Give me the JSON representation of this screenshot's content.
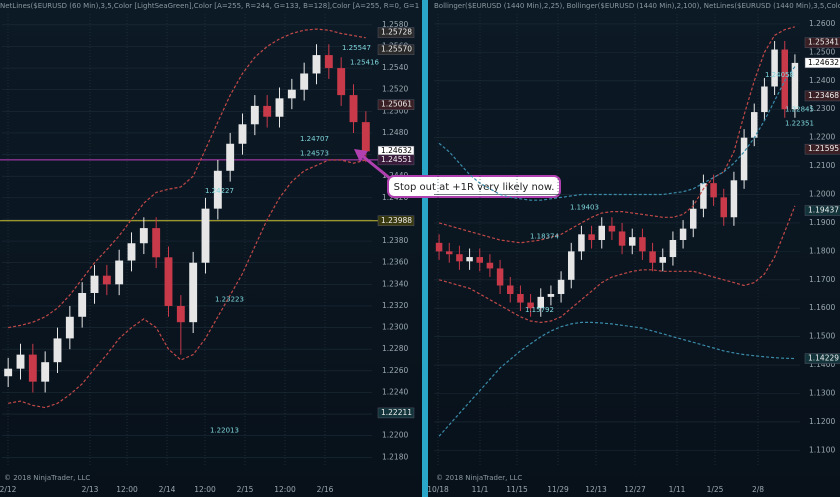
{
  "chart_data": [
    {
      "type": "candlestick",
      "title": "NetLines($EURUSD (60 Min),3,5,Color [LightSeaGreen],Color [A=255, R=244, G=133, B=128],Color [A=255, R=0, G=1",
      "copyright": "© 2018 NinjaTrader, LLC",
      "x_labels": [
        "2/12",
        "2/13",
        "12:00",
        "2/14",
        "12:00",
        "2/15",
        "12:00",
        "2/16"
      ],
      "open": [
        1.2255,
        1.2262,
        1.2275,
        1.225,
        1.2268,
        1.229,
        1.231,
        1.2332,
        1.2348,
        1.234,
        1.2362,
        1.2378,
        1.2392,
        1.2365,
        1.232,
        1.2305,
        1.236,
        1.241,
        1.2445,
        1.247,
        1.2488,
        1.2505,
        1.2495,
        1.2512,
        1.252,
        1.2535,
        1.2552,
        1.254,
        1.2515,
        1.249
      ],
      "high": [
        1.2272,
        1.2285,
        1.2285,
        1.2278,
        1.23,
        1.232,
        1.2342,
        1.2358,
        1.2358,
        1.2372,
        1.2388,
        1.2402,
        1.2402,
        1.2375,
        1.233,
        1.237,
        1.242,
        1.2455,
        1.248,
        1.2498,
        1.2515,
        1.2515,
        1.2522,
        1.253,
        1.2545,
        1.2562,
        1.2562,
        1.255,
        1.2525,
        1.25
      ],
      "low": [
        1.2245,
        1.2252,
        1.224,
        1.224,
        1.2258,
        1.228,
        1.23,
        1.2322,
        1.233,
        1.233,
        1.2352,
        1.2368,
        1.2355,
        1.231,
        1.2275,
        1.2295,
        1.235,
        1.24,
        1.2435,
        1.246,
        1.2478,
        1.2485,
        1.2485,
        1.2502,
        1.251,
        1.2525,
        1.253,
        1.2505,
        1.248,
        1.2453
      ],
      "close": [
        1.2262,
        1.2275,
        1.225,
        1.2268,
        1.229,
        1.231,
        1.2332,
        1.2348,
        1.234,
        1.2362,
        1.2378,
        1.2392,
        1.2365,
        1.232,
        1.2305,
        1.236,
        1.241,
        1.2445,
        1.247,
        1.2488,
        1.2505,
        1.2495,
        1.2512,
        1.252,
        1.2535,
        1.2552,
        1.254,
        1.2515,
        1.249,
        1.2463
      ],
      "up_color": "#e6e6e6",
      "down_color": "#c83a4a",
      "series": [
        {
          "color": "#c04848",
          "values": [
            1.23,
            1.2302,
            1.2305,
            1.231,
            1.2318,
            1.233,
            1.2345,
            1.236,
            1.2372,
            1.2385,
            1.24,
            1.2415,
            1.2425,
            1.2428,
            1.243,
            1.244,
            1.2465,
            1.249,
            1.2515,
            1.2535,
            1.255,
            1.256,
            1.2567,
            1.2572,
            1.2575,
            1.2576,
            1.2575,
            1.2572,
            1.257,
            1.2568
          ]
        },
        {
          "color": "#c04848",
          "values": [
            1.223,
            1.2232,
            1.2228,
            1.2226,
            1.223,
            1.2238,
            1.2248,
            1.2262,
            1.2275,
            1.229,
            1.23,
            1.2308,
            1.23,
            1.228,
            1.227,
            1.2275,
            1.229,
            1.231,
            1.233,
            1.235,
            1.2375,
            1.24,
            1.242,
            1.2435,
            1.2445,
            1.245,
            1.2455,
            1.2455,
            1.2452,
            1.2455
          ]
        }
      ],
      "levels": [
        {
          "value": 1.24551,
          "color": "#c040c0"
        },
        {
          "value": 1.23988,
          "color": "#c8c030"
        }
      ],
      "price_labels": [
        {
          "value": 1.25728,
          "color": "#2a2a2a"
        },
        {
          "value": 1.2557,
          "label": "1.25570",
          "color": "#2a2a2a"
        },
        {
          "value": 1.25061,
          "color": "#3a2024"
        },
        {
          "value": 1.24632,
          "color": "#ffffff"
        },
        {
          "value": 1.24551,
          "color": "#3a1a3a"
        },
        {
          "value": 1.23988,
          "color": "#3a3a10"
        },
        {
          "value": 1.22211,
          "color": "#12343a"
        }
      ],
      "net_labels": [
        1.25547,
        1.25416,
        1.24707,
        1.24573,
        1.24227,
        1.23223,
        1.22013
      ],
      "annotation": "Stop out at +1R very likely now.",
      "ylim": [
        1.2172,
        1.259
      ],
      "yticks": [
        {
          "value": 1.218,
          "label": "1.2180"
        },
        {
          "value": 1.22,
          "label": "1.2200"
        },
        {
          "value": 1.222,
          "label": "1.2220"
        },
        {
          "value": 1.224,
          "label": "1.2240"
        },
        {
          "value": 1.226,
          "label": "1.2260"
        },
        {
          "value": 1.228,
          "label": "1.2280"
        },
        {
          "value": 1.23,
          "label": "1.2300"
        },
        {
          "value": 1.232,
          "label": "1.2320"
        },
        {
          "value": 1.234,
          "label": "1.2340"
        },
        {
          "value": 1.236,
          "label": "1.2360"
        },
        {
          "value": 1.238,
          "label": "1.2380"
        },
        {
          "value": 1.24,
          "label": "1.2400"
        },
        {
          "value": 1.242,
          "label": "1.2420"
        },
        {
          "value": 1.244,
          "label": "1.2440"
        },
        {
          "value": 1.246,
          "label": "1.2460"
        },
        {
          "value": 1.248,
          "label": "1.2480"
        },
        {
          "value": 1.25,
          "label": "1.2500"
        },
        {
          "value": 1.252,
          "label": "1.2520"
        },
        {
          "value": 1.254,
          "label": "1.2540"
        },
        {
          "value": 1.256,
          "label": "1.2560"
        },
        {
          "value": 1.258,
          "label": "1.2580"
        }
      ]
    },
    {
      "type": "candlestick",
      "title": "Bollinger($EURUSD (1440 Min),2,25), Bollinger($EURUSD (1440 Min),2,100), NetLines($EURUSD (1440 Min),3,5,Color",
      "copyright": "© 2018 NinjaTrader, LLC",
      "x_labels": [
        "10/18",
        "11/1",
        "11/15",
        "11/29",
        "12/13",
        "12/27",
        "1/11",
        "1/25",
        "2/8"
      ],
      "open": [
        1.183,
        1.18,
        1.179,
        1.1765,
        1.178,
        1.176,
        1.174,
        1.168,
        1.165,
        1.162,
        1.16,
        1.164,
        1.165,
        1.17,
        1.18,
        1.186,
        1.184,
        1.189,
        1.187,
        1.182,
        1.185,
        1.18,
        1.176,
        1.178,
        1.184,
        1.188,
        1.195,
        1.204,
        1.199,
        1.192,
        1.205,
        1.22,
        1.229,
        1.238,
        1.251,
        1.23
      ],
      "high": [
        1.186,
        1.183,
        1.182,
        1.181,
        1.181,
        1.179,
        1.177,
        1.171,
        1.168,
        1.165,
        1.167,
        1.168,
        1.173,
        1.183,
        1.189,
        1.189,
        1.192,
        1.192,
        1.19,
        1.188,
        1.188,
        1.183,
        1.181,
        1.187,
        1.191,
        1.198,
        1.207,
        1.207,
        1.202,
        1.208,
        1.223,
        1.232,
        1.241,
        1.254,
        1.254,
        1.2493
      ],
      "low": [
        1.177,
        1.176,
        1.1735,
        1.1735,
        1.173,
        1.171,
        1.165,
        1.162,
        1.159,
        1.157,
        1.157,
        1.161,
        1.162,
        1.167,
        1.177,
        1.181,
        1.181,
        1.184,
        1.179,
        1.179,
        1.177,
        1.173,
        1.173,
        1.175,
        1.181,
        1.185,
        1.192,
        1.196,
        1.189,
        1.189,
        1.202,
        1.217,
        1.226,
        1.235,
        1.227,
        1.227
      ],
      "close": [
        1.18,
        1.179,
        1.1765,
        1.178,
        1.176,
        1.174,
        1.168,
        1.165,
        1.162,
        1.16,
        1.164,
        1.165,
        1.17,
        1.18,
        1.186,
        1.184,
        1.189,
        1.187,
        1.182,
        1.185,
        1.18,
        1.176,
        1.178,
        1.184,
        1.188,
        1.195,
        1.204,
        1.199,
        1.192,
        1.205,
        1.22,
        1.229,
        1.238,
        1.251,
        1.23,
        1.2463
      ],
      "up_color": "#e6e6e6",
      "down_color": "#c83a4a",
      "series": [
        {
          "color": "#c04848",
          "values": [
            1.19,
            1.189,
            1.188,
            1.187,
            1.186,
            1.185,
            1.184,
            1.1835,
            1.183,
            1.1835,
            1.184,
            1.185,
            1.186,
            1.188,
            1.19,
            1.192,
            1.1935,
            1.194,
            1.194,
            1.1935,
            1.193,
            1.1925,
            1.192,
            1.192,
            1.193,
            1.196,
            1.202,
            1.206,
            1.208,
            1.215,
            1.228,
            1.24,
            1.25,
            1.256,
            1.258,
            1.259
          ]
        },
        {
          "color": "#c04848",
          "values": [
            1.17,
            1.169,
            1.168,
            1.167,
            1.165,
            1.163,
            1.161,
            1.159,
            1.157,
            1.1555,
            1.155,
            1.1555,
            1.157,
            1.16,
            1.163,
            1.166,
            1.169,
            1.171,
            1.172,
            1.173,
            1.1735,
            1.1735,
            1.173,
            1.173,
            1.173,
            1.173,
            1.172,
            1.171,
            1.17,
            1.169,
            1.168,
            1.169,
            1.172,
            1.178,
            1.187,
            1.196
          ]
        },
        {
          "color": "#3a8aa8",
          "values": [
            1.218,
            1.215,
            1.211,
            1.207,
            1.204,
            1.202,
            1.2,
            1.199,
            1.1985,
            1.198,
            1.198,
            1.1985,
            1.199,
            1.1995,
            1.2,
            1.2,
            1.2,
            1.2,
            1.2,
            1.2,
            1.2,
            1.2,
            1.2,
            1.2005,
            1.201,
            1.202,
            1.204,
            1.206,
            1.208,
            1.211,
            1.215,
            1.22,
            1.226,
            1.233,
            1.24,
            1.245
          ]
        },
        {
          "color": "#3a8aa8",
          "values": [
            1.115,
            1.119,
            1.123,
            1.127,
            1.131,
            1.135,
            1.139,
            1.142,
            1.145,
            1.1475,
            1.15,
            1.152,
            1.1535,
            1.1545,
            1.155,
            1.155,
            1.1548,
            1.1545,
            1.154,
            1.1535,
            1.153,
            1.152,
            1.151,
            1.15,
            1.149,
            1.148,
            1.147,
            1.146,
            1.145,
            1.1443,
            1.1437,
            1.1433,
            1.1429,
            1.1426,
            1.1424,
            1.1423
          ]
        }
      ],
      "levels": [],
      "price_labels": [
        {
          "value": 1.25341,
          "color": "#3a2024"
        },
        {
          "value": 1.24632,
          "color": "#ffffff"
        },
        {
          "value": 1.23468,
          "color": "#3a2024"
        },
        {
          "value": 1.21595,
          "color": "#3a2024"
        },
        {
          "value": 1.19437,
          "color": "#12343a"
        },
        {
          "value": 1.14229,
          "color": "#12343a"
        }
      ],
      "net_labels": [
        1.24058,
        1.22845,
        1.22351,
        1.19403,
        1.18374,
        1.15792
      ],
      "ylim": [
        1.1045,
        1.2635
      ],
      "yticks": [
        {
          "value": 1.11,
          "label": "1.1100"
        },
        {
          "value": 1.12,
          "label": "1.1200"
        },
        {
          "value": 1.13,
          "label": "1.1300"
        },
        {
          "value": 1.14,
          "label": "1.1400"
        },
        {
          "value": 1.15,
          "label": "1.1500"
        },
        {
          "value": 1.16,
          "label": "1.1600"
        },
        {
          "value": 1.17,
          "label": "1.1700"
        },
        {
          "value": 1.18,
          "label": "1.1800"
        },
        {
          "value": 1.19,
          "label": "1.1900"
        },
        {
          "value": 1.2,
          "label": "1.2000"
        },
        {
          "value": 1.21,
          "label": "1.2100"
        },
        {
          "value": 1.22,
          "label": "1.2200"
        },
        {
          "value": 1.23,
          "label": "1.2300"
        },
        {
          "value": 1.24,
          "label": "1.2400"
        },
        {
          "value": 1.25,
          "label": "1.2500"
        },
        {
          "value": 1.26,
          "label": "1.2600"
        }
      ]
    }
  ]
}
